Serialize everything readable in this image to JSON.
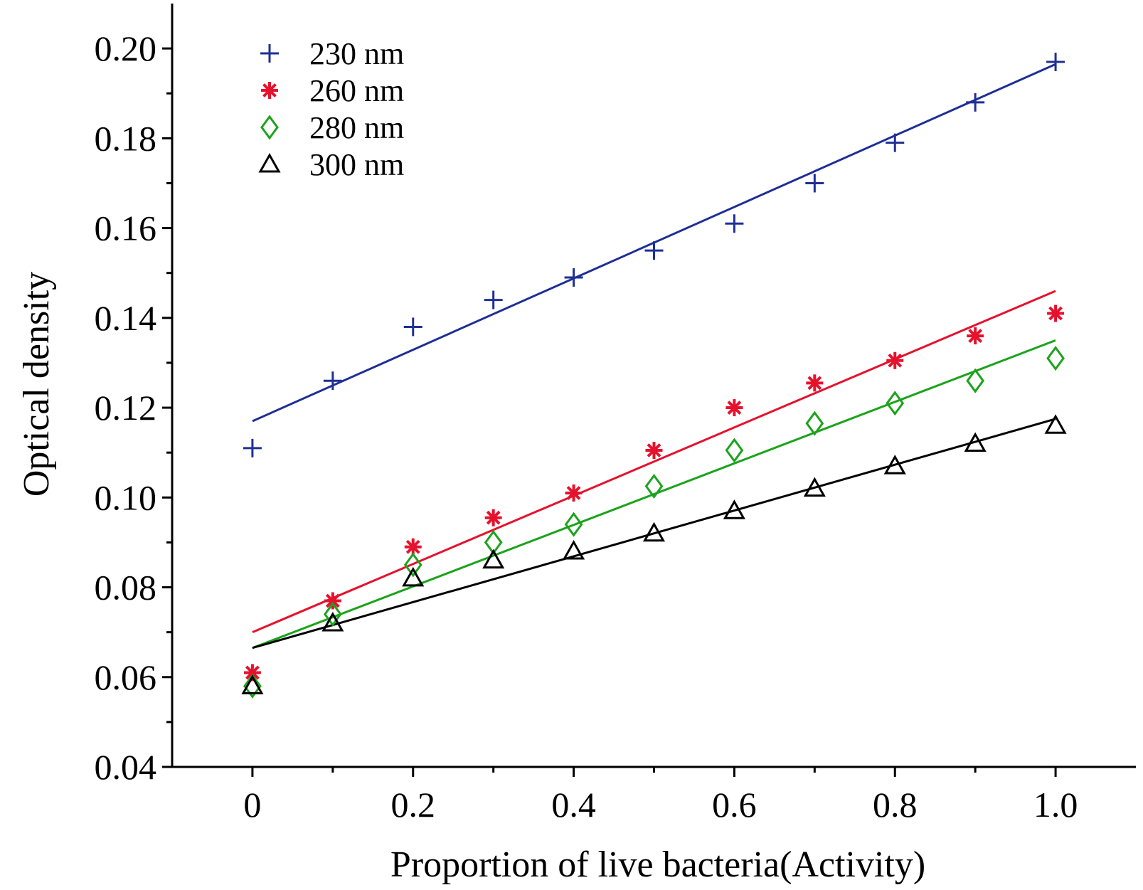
{
  "chart_data": {
    "type": "scatter",
    "xlabel": "Proportion of live bacteria(Activity)",
    "ylabel": "Optical density",
    "xlim": [
      -0.1,
      1.1
    ],
    "ylim": [
      0.04,
      0.21
    ],
    "x_ticks": [
      0,
      0.2,
      0.4,
      0.6,
      0.8,
      1.0
    ],
    "x_tick_labels": [
      "0",
      "0.2",
      "0.4",
      "0.6",
      "0.8",
      "1.0"
    ],
    "y_ticks": [
      0.04,
      0.06,
      0.08,
      0.1,
      0.12,
      0.14,
      0.16,
      0.18,
      0.2
    ],
    "y_tick_labels": [
      "0.04",
      "0.06",
      "0.08",
      "0.10",
      "0.12",
      "0.14",
      "0.16",
      "0.18",
      "0.20"
    ],
    "grid": false,
    "legend_position": "top-left",
    "x": [
      0,
      0.1,
      0.2,
      0.3,
      0.4,
      0.5,
      0.6,
      0.7,
      0.8,
      0.9,
      1.0
    ],
    "series": [
      {
        "name": "230 nm",
        "marker": "plus",
        "color": "#1f2f96",
        "values": [
          0.111,
          0.126,
          0.138,
          0.144,
          0.149,
          0.155,
          0.161,
          0.17,
          0.179,
          0.188,
          0.197
        ],
        "fit_line": [
          0.117,
          0.1965
        ]
      },
      {
        "name": "260 nm",
        "marker": "asterisk",
        "color": "#e5122d",
        "values": [
          0.061,
          0.077,
          0.089,
          0.0955,
          0.101,
          0.1105,
          0.12,
          0.1255,
          0.1305,
          0.136,
          0.141
        ],
        "fit_line": [
          0.07,
          0.146
        ]
      },
      {
        "name": "280 nm",
        "marker": "diamond",
        "color": "#1ca31c",
        "values": [
          0.058,
          0.074,
          0.085,
          0.09,
          0.094,
          0.1025,
          0.1105,
          0.1165,
          0.121,
          0.126,
          0.131
        ],
        "fit_line": [
          0.0665,
          0.135
        ]
      },
      {
        "name": "300 nm",
        "marker": "triangle",
        "color": "#000000",
        "values": [
          0.058,
          0.072,
          0.082,
          0.086,
          0.088,
          0.092,
          0.097,
          0.102,
          0.107,
          0.112,
          0.116
        ],
        "fit_line": [
          0.0665,
          0.1175
        ]
      }
    ]
  }
}
